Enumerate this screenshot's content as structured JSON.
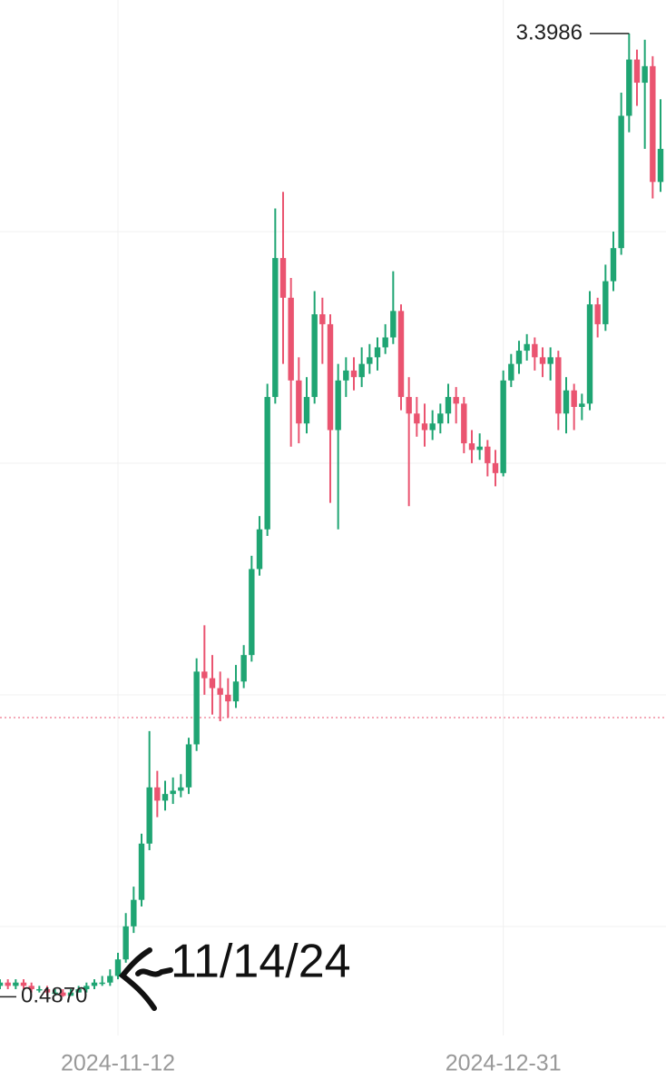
{
  "chart_data": {
    "type": "candlestick",
    "x": [
      "2024-10-28",
      "2024-10-29",
      "2024-10-30",
      "2024-10-31",
      "2024-11-01",
      "2024-11-02",
      "2024-11-03",
      "2024-11-04",
      "2024-11-05",
      "2024-11-06",
      "2024-11-07",
      "2024-11-08",
      "2024-11-09",
      "2024-11-10",
      "2024-11-11",
      "2024-11-12",
      "2024-11-13",
      "2024-11-14",
      "2024-11-15",
      "2024-11-16",
      "2024-11-17",
      "2024-11-18",
      "2024-11-19",
      "2024-11-20",
      "2024-11-21",
      "2024-11-22",
      "2024-11-23",
      "2024-11-24",
      "2024-11-25",
      "2024-11-26",
      "2024-11-27",
      "2024-11-28",
      "2024-11-29",
      "2024-11-30",
      "2024-12-01",
      "2024-12-02",
      "2024-12-03",
      "2024-12-04",
      "2024-12-05",
      "2024-12-06",
      "2024-12-07",
      "2024-12-08",
      "2024-12-09",
      "2024-12-10",
      "2024-12-11",
      "2024-12-12",
      "2024-12-13",
      "2024-12-14",
      "2024-12-15",
      "2024-12-16",
      "2024-12-17",
      "2024-12-18",
      "2024-12-19",
      "2024-12-20",
      "2024-12-21",
      "2024-12-22",
      "2024-12-23",
      "2024-12-24",
      "2024-12-25",
      "2024-12-26",
      "2024-12-27",
      "2024-12-28",
      "2024-12-29",
      "2024-12-30",
      "2024-12-31",
      "2025-01-01",
      "2025-01-02",
      "2025-01-03",
      "2025-01-04",
      "2025-01-05",
      "2025-01-06",
      "2025-01-07",
      "2025-01-08",
      "2025-01-09",
      "2025-01-10",
      "2025-01-11",
      "2025-01-12",
      "2025-01-13",
      "2025-01-14",
      "2025-01-15",
      "2025-01-16",
      "2025-01-17",
      "2025-01-18",
      "2025-01-19",
      "2025-01-20"
    ],
    "open": [
      0.52,
      0.53,
      0.52,
      0.53,
      0.52,
      0.51,
      0.51,
      0.5,
      0.5,
      0.49,
      0.5,
      0.51,
      0.52,
      0.53,
      0.53,
      0.55,
      0.6,
      0.7,
      0.78,
      0.95,
      1.12,
      1.08,
      1.1,
      1.11,
      1.12,
      1.25,
      1.47,
      1.45,
      1.42,
      1.4,
      1.38,
      1.44,
      1.52,
      1.78,
      1.9,
      2.3,
      2.72,
      2.6,
      2.35,
      2.22,
      2.3,
      2.55,
      2.52,
      2.2,
      2.35,
      2.38,
      2.36,
      2.4,
      2.42,
      2.45,
      2.48,
      2.56,
      2.3,
      2.25,
      2.22,
      2.2,
      2.22,
      2.25,
      2.3,
      2.28,
      2.16,
      2.14,
      2.15,
      2.1,
      2.07,
      2.35,
      2.4,
      2.44,
      2.46,
      2.42,
      2.4,
      2.42,
      2.25,
      2.32,
      2.27,
      2.28,
      2.58,
      2.52,
      2.65,
      2.75,
      3.15,
      3.32,
      3.25,
      3.3,
      2.95
    ],
    "high": [
      0.54,
      0.54,
      0.54,
      0.54,
      0.53,
      0.52,
      0.52,
      0.51,
      0.51,
      0.51,
      0.52,
      0.53,
      0.54,
      0.55,
      0.57,
      0.62,
      0.74,
      0.82,
      0.98,
      1.29,
      1.17,
      1.14,
      1.15,
      1.16,
      1.27,
      1.51,
      1.61,
      1.52,
      1.47,
      1.45,
      1.49,
      1.55,
      1.82,
      1.94,
      2.34,
      2.87,
      2.92,
      2.66,
      2.42,
      2.36,
      2.62,
      2.6,
      2.55,
      2.4,
      2.42,
      2.42,
      2.45,
      2.46,
      2.48,
      2.52,
      2.68,
      2.58,
      2.36,
      2.3,
      2.28,
      2.26,
      2.28,
      2.34,
      2.33,
      2.3,
      2.2,
      2.19,
      2.17,
      2.14,
      2.38,
      2.43,
      2.47,
      2.49,
      2.48,
      2.45,
      2.45,
      2.44,
      2.36,
      2.34,
      2.31,
      2.62,
      2.6,
      2.7,
      2.8,
      3.22,
      3.3986,
      3.35,
      3.38,
      3.33,
      3.2
    ],
    "low": [
      0.51,
      0.51,
      0.51,
      0.51,
      0.5,
      0.5,
      0.49,
      0.49,
      0.487,
      0.49,
      0.5,
      0.5,
      0.51,
      0.52,
      0.52,
      0.54,
      0.59,
      0.68,
      0.76,
      0.93,
      1.03,
      1.05,
      1.07,
      1.09,
      1.1,
      1.23,
      1.4,
      1.34,
      1.32,
      1.33,
      1.36,
      1.42,
      1.5,
      1.76,
      1.88,
      2.28,
      2.4,
      2.15,
      2.16,
      2.19,
      2.28,
      2.4,
      1.98,
      1.9,
      2.3,
      2.32,
      2.33,
      2.37,
      2.38,
      2.43,
      2.46,
      2.26,
      1.97,
      2.18,
      2.15,
      2.17,
      2.19,
      2.22,
      2.22,
      2.13,
      2.1,
      2.11,
      2.06,
      2.03,
      2.06,
      2.33,
      2.37,
      2.41,
      2.38,
      2.36,
      2.35,
      2.2,
      2.19,
      2.2,
      2.23,
      2.26,
      2.48,
      2.5,
      2.62,
      2.73,
      3.1,
      3.18,
      3.05,
      2.9,
      2.92
    ],
    "close": [
      0.53,
      0.52,
      0.53,
      0.52,
      0.51,
      0.51,
      0.5,
      0.5,
      0.49,
      0.5,
      0.51,
      0.52,
      0.53,
      0.53,
      0.55,
      0.6,
      0.7,
      0.78,
      0.95,
      1.12,
      1.08,
      1.1,
      1.11,
      1.12,
      1.25,
      1.47,
      1.45,
      1.42,
      1.4,
      1.38,
      1.44,
      1.52,
      1.78,
      1.9,
      2.3,
      2.72,
      2.6,
      2.35,
      2.22,
      2.3,
      2.55,
      2.52,
      2.2,
      2.35,
      2.38,
      2.36,
      2.4,
      2.42,
      2.45,
      2.48,
      2.56,
      2.3,
      2.25,
      2.22,
      2.2,
      2.22,
      2.25,
      2.3,
      2.28,
      2.16,
      2.14,
      2.15,
      2.1,
      2.07,
      2.35,
      2.4,
      2.44,
      2.46,
      2.42,
      2.4,
      2.42,
      2.25,
      2.32,
      2.27,
      2.28,
      2.58,
      2.52,
      2.65,
      2.75,
      3.15,
      3.32,
      3.25,
      3.3,
      2.95,
      3.05
    ],
    "up_color": "#1fa573",
    "down_color": "#ea5470",
    "xlim": [
      "2024-10-28",
      "2025-01-20"
    ],
    "xticks": [
      "2024-11-12",
      "2024-12-31"
    ],
    "ylim": [
      0.37,
      3.5
    ],
    "annotations": [
      {
        "label": "3.3986",
        "value": 3.3986
      },
      {
        "label": "0.4870",
        "value": 0.487
      }
    ],
    "note": "11/14/24"
  }
}
